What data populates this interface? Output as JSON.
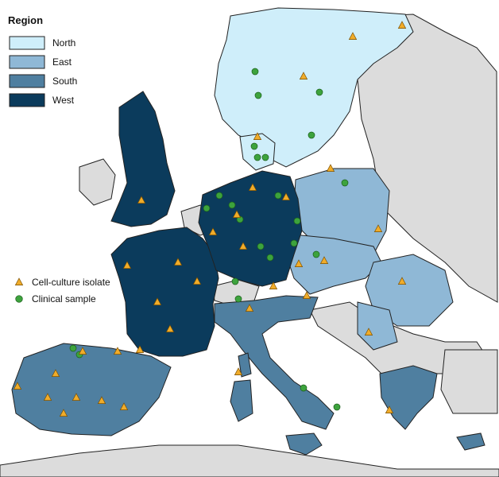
{
  "map": {
    "colors": {
      "sea": "#ffffff",
      "other_land": "#dcdcdc",
      "border": "#222222"
    }
  },
  "legend": {
    "title": "Region",
    "regions": [
      {
        "label": "North",
        "color": "#cfeefa"
      },
      {
        "label": "East",
        "color": "#8fb8d6"
      },
      {
        "label": "South",
        "color": "#4f7fa0"
      },
      {
        "label": "West",
        "color": "#0b3b5c"
      }
    ]
  },
  "markers": {
    "legend": [
      {
        "label": "Cell-culture isolate",
        "shape": "triangle",
        "color": "#f0ac2a"
      },
      {
        "label": "Clinical sample",
        "shape": "circle",
        "color": "#3da33d"
      }
    ]
  }
}
